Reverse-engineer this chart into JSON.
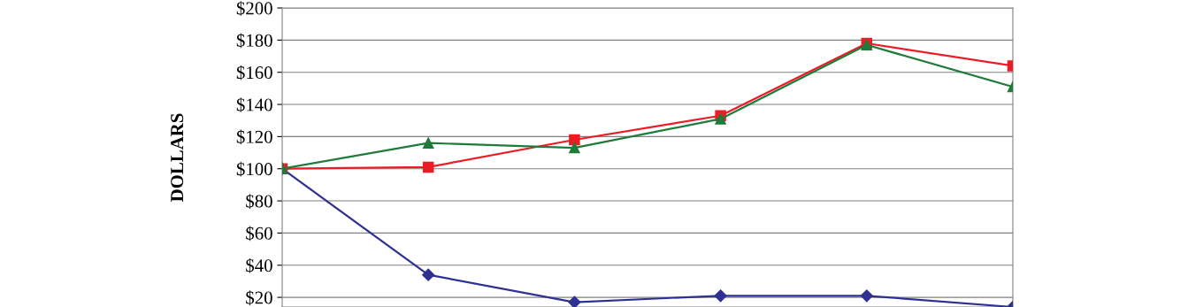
{
  "chart_data": {
    "type": "line",
    "ylabel": "DOLLARS",
    "categories": [
      null,
      null,
      null,
      null,
      null,
      null
    ],
    "series": [
      {
        "color": "#2e3192",
        "marker": "diamond",
        "values": [
          100,
          34,
          17,
          21,
          21,
          14
        ]
      },
      {
        "color": "#ed1c24",
        "marker": "square",
        "values": [
          100,
          101,
          118,
          133,
          178,
          164
        ]
      },
      {
        "color": "#1e7b3a",
        "marker": "triangle",
        "values": [
          100,
          116,
          113,
          131,
          177,
          151
        ]
      }
    ],
    "ylim": [
      14,
      200
    ],
    "yticks": [
      {
        "value": 20,
        "label": "$20"
      },
      {
        "value": 40,
        "label": "$40"
      },
      {
        "value": 60,
        "label": "$60"
      },
      {
        "value": 80,
        "label": "$80"
      },
      {
        "value": 100,
        "label": "$100"
      },
      {
        "value": 120,
        "label": "$120"
      },
      {
        "value": 140,
        "label": "$140"
      },
      {
        "value": 160,
        "label": "$160"
      },
      {
        "value": 180,
        "label": "$180"
      },
      {
        "value": 200,
        "label": "$200"
      }
    ],
    "grid": "y",
    "line_style": "solid"
  }
}
